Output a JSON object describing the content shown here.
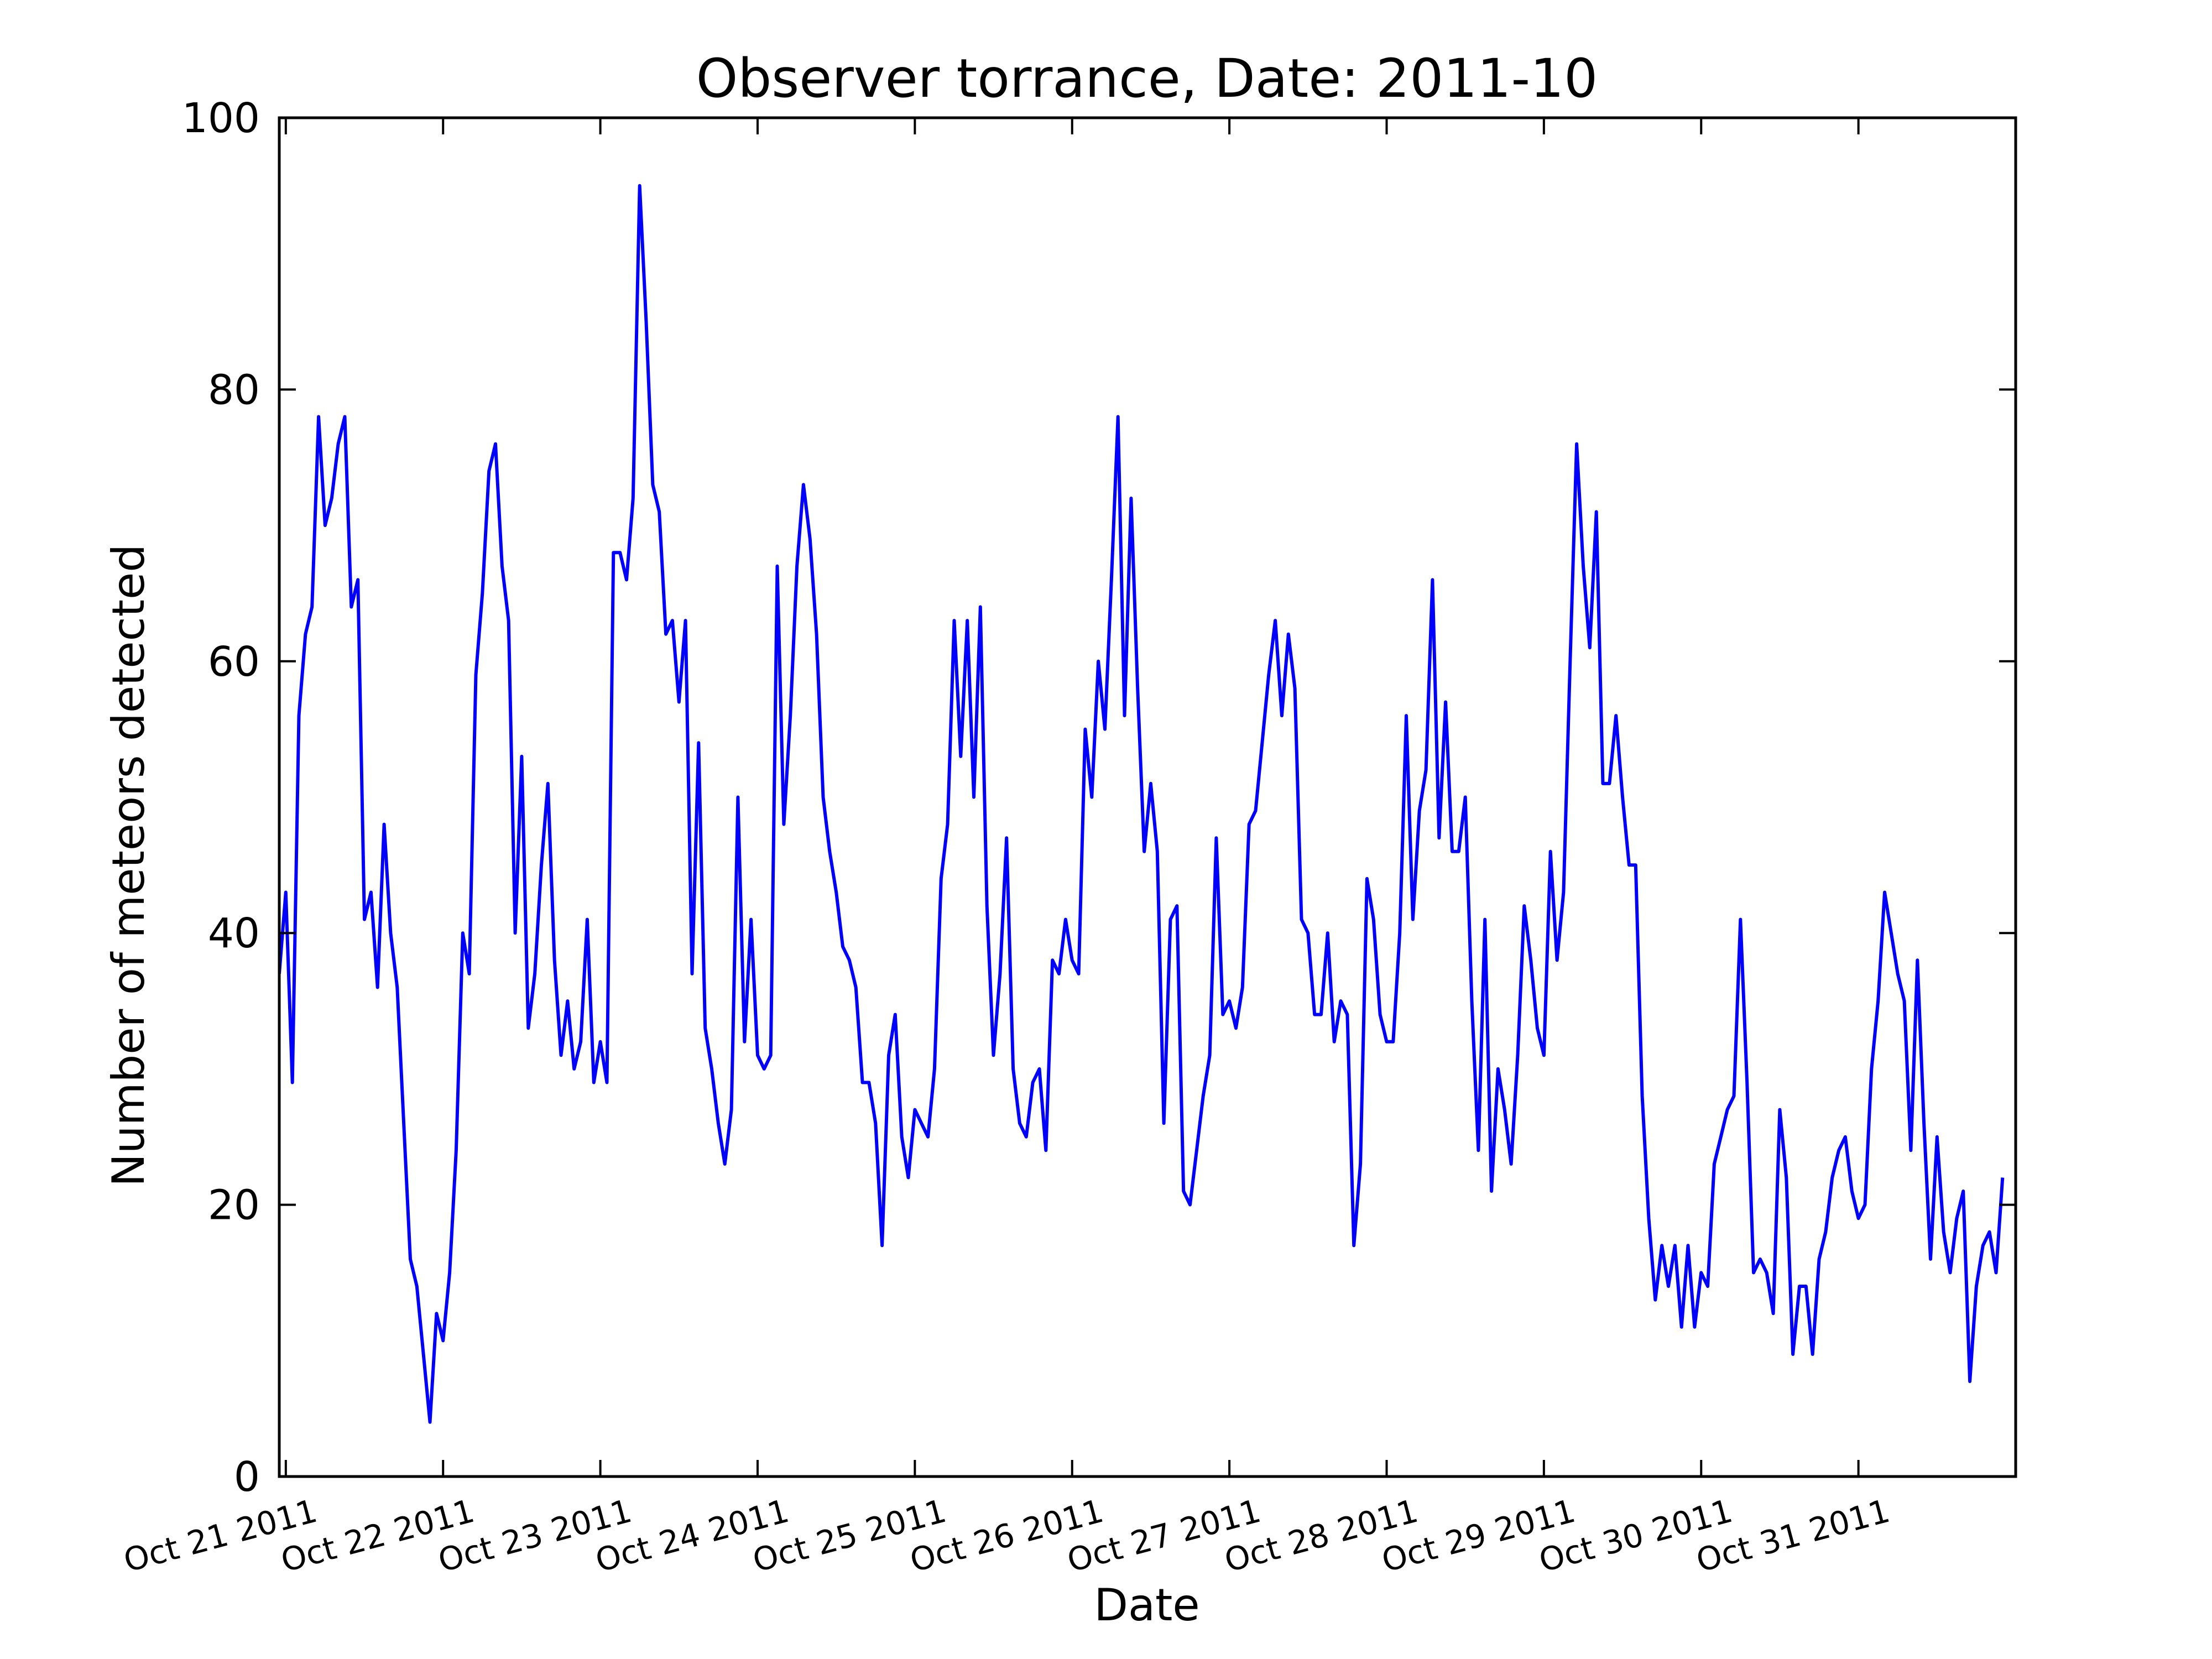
{
  "chart_data": {
    "type": "line",
    "title": "Observer torrance, Date: 2011-10",
    "xlabel": "Date",
    "ylabel": "Number of meteors detected",
    "ylim": [
      0,
      100
    ],
    "xlim": [
      "2011-10-20T23:00",
      "2011-11-01T00:00"
    ],
    "yticks": [
      0,
      20,
      40,
      60,
      80,
      100
    ],
    "xticks": [
      {
        "date": "2011-10-21",
        "label": "Oct 21 2011"
      },
      {
        "date": "2011-10-22",
        "label": "Oct 22 2011"
      },
      {
        "date": "2011-10-23",
        "label": "Oct 23 2011"
      },
      {
        "date": "2011-10-24",
        "label": "Oct 24 2011"
      },
      {
        "date": "2011-10-25",
        "label": "Oct 25 2011"
      },
      {
        "date": "2011-10-26",
        "label": "Oct 26 2011"
      },
      {
        "date": "2011-10-27",
        "label": "Oct 27 2011"
      },
      {
        "date": "2011-10-28",
        "label": "Oct 28 2011"
      },
      {
        "date": "2011-10-29",
        "label": "Oct 29 2011"
      },
      {
        "date": "2011-10-30",
        "label": "Oct 30 2011"
      },
      {
        "date": "2011-10-31",
        "label": "Oct 31 2011"
      }
    ],
    "grid": false,
    "line_color": "#0000ff",
    "series": [
      {
        "start": "2011-10-20T23:00",
        "interval_hours": 1,
        "values": [
          37,
          43,
          29,
          56,
          62,
          64,
          78,
          70,
          72,
          76,
          78,
          64,
          66,
          41,
          43,
          36,
          48,
          40,
          36,
          26,
          16,
          14,
          9,
          4,
          12,
          10,
          15,
          24,
          40,
          37,
          59,
          65,
          74,
          76,
          67,
          63,
          40,
          53,
          33,
          37,
          45,
          51,
          38,
          31,
          35,
          30,
          32,
          41,
          29,
          32,
          29,
          68,
          68,
          66,
          72,
          95,
          85,
          73,
          71,
          62,
          63,
          57,
          63,
          37,
          54,
          33,
          30,
          26,
          23,
          27,
          50,
          32,
          41,
          31,
          30,
          31,
          67,
          48,
          56,
          67,
          73,
          69,
          62,
          50,
          46,
          43,
          39,
          38,
          36,
          29,
          29,
          26,
          17,
          31,
          34,
          25,
          22,
          27,
          26,
          25,
          30,
          44,
          48,
          63,
          53,
          63,
          50,
          64,
          42,
          31,
          37,
          47,
          30,
          26,
          25,
          29,
          30,
          24,
          38,
          37,
          41,
          38,
          37,
          55,
          50,
          60,
          55,
          66,
          78,
          56,
          72,
          58,
          46,
          51,
          46,
          26,
          41,
          42,
          21,
          20,
          24,
          28,
          31,
          47,
          34,
          35,
          33,
          36,
          48,
          49,
          54,
          59,
          63,
          56,
          62,
          58,
          41,
          40,
          34,
          34,
          40,
          32,
          35,
          34,
          17,
          23,
          44,
          41,
          34,
          32,
          32,
          40,
          56,
          41,
          49,
          52,
          66,
          47,
          57,
          46,
          46,
          50,
          35,
          24,
          41,
          21,
          30,
          27,
          23,
          31,
          42,
          38,
          33,
          31,
          46,
          38,
          43,
          60,
          76,
          67,
          61,
          71,
          51,
          51,
          56,
          50,
          45,
          45,
          28,
          19,
          13,
          17,
          14,
          17,
          11,
          17,
          11,
          15,
          14,
          23,
          25,
          27,
          28,
          41,
          29,
          15,
          16,
          15,
          12,
          27,
          22,
          9,
          14,
          14,
          9,
          16,
          18,
          22,
          24,
          25,
          21,
          19,
          20,
          30,
          35,
          43,
          40,
          37,
          35,
          24,
          38,
          26,
          16,
          25,
          18,
          15,
          19,
          21,
          7,
          14,
          17,
          18,
          15,
          22
        ]
      }
    ]
  }
}
